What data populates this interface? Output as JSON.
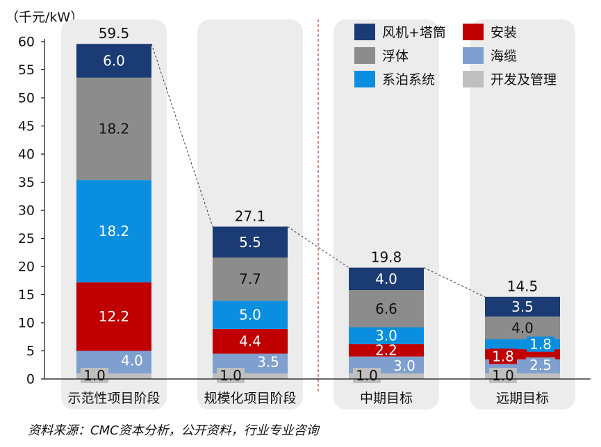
{
  "unit_label": "（千元/kW）",
  "source_note": "资料来源：CMC资本分析，公开资料，行业专业咨询",
  "chart_data": {
    "type": "bar",
    "stacked": true,
    "title": "",
    "xlabel": "",
    "ylabel": "千元/kW",
    "ylim": [
      0,
      60
    ],
    "yticks": [
      0,
      5,
      10,
      15,
      20,
      25,
      30,
      35,
      40,
      45,
      50,
      55,
      60
    ],
    "grid": false,
    "legend_position": "top-right",
    "categories": [
      "示范性项目阶段",
      "规模化项目阶段",
      "中期目标",
      "远期目标"
    ],
    "totals": [
      59.5,
      27.1,
      19.8,
      14.5
    ],
    "total_labels": [
      "59.5",
      "27.1",
      "19.8",
      "14.5"
    ],
    "series": [
      {
        "name": "开发及管理",
        "color": "#bfbfbf",
        "label_color": "#111111",
        "values": [
          1.0,
          1.0,
          1.0,
          1.0
        ],
        "labels": [
          "1.0",
          "1.0",
          "1.0",
          "1.0"
        ]
      },
      {
        "name": "海缆",
        "color": "#7f9fcf",
        "label_color": "#ffffff",
        "values": [
          4.0,
          3.5,
          3.0,
          2.5
        ],
        "labels": [
          "4.0",
          "3.5",
          "3.0",
          "2.5"
        ]
      },
      {
        "name": "安装",
        "color": "#c00000",
        "label_color": "#ffffff",
        "values": [
          12.2,
          4.4,
          2.2,
          1.8
        ],
        "labels": [
          "12.2",
          "4.4",
          "2.2",
          "1.8"
        ]
      },
      {
        "name": "系泊系统",
        "color": "#0a8fe0",
        "label_color": "#ffffff",
        "values": [
          18.2,
          5.0,
          3.0,
          1.8
        ],
        "labels": [
          "18.2",
          "5.0",
          "3.0",
          "1.8"
        ]
      },
      {
        "name": "浮体",
        "color": "#8c8c8c",
        "label_color": "#111111",
        "values": [
          18.2,
          7.7,
          6.6,
          4.0
        ],
        "labels": [
          "18.2",
          "7.7",
          "6.6",
          "4.0"
        ]
      },
      {
        "name": "风机+塔筒",
        "color": "#1a3b73",
        "label_color": "#ffffff",
        "values": [
          6.0,
          5.5,
          4.0,
          3.5
        ],
        "labels": [
          "6.0",
          "5.5",
          "4.0",
          "3.5"
        ]
      }
    ],
    "legend_order": [
      "风机+塔筒",
      "安装",
      "浮体",
      "海缆",
      "系泊系统",
      "开发及管理"
    ]
  }
}
